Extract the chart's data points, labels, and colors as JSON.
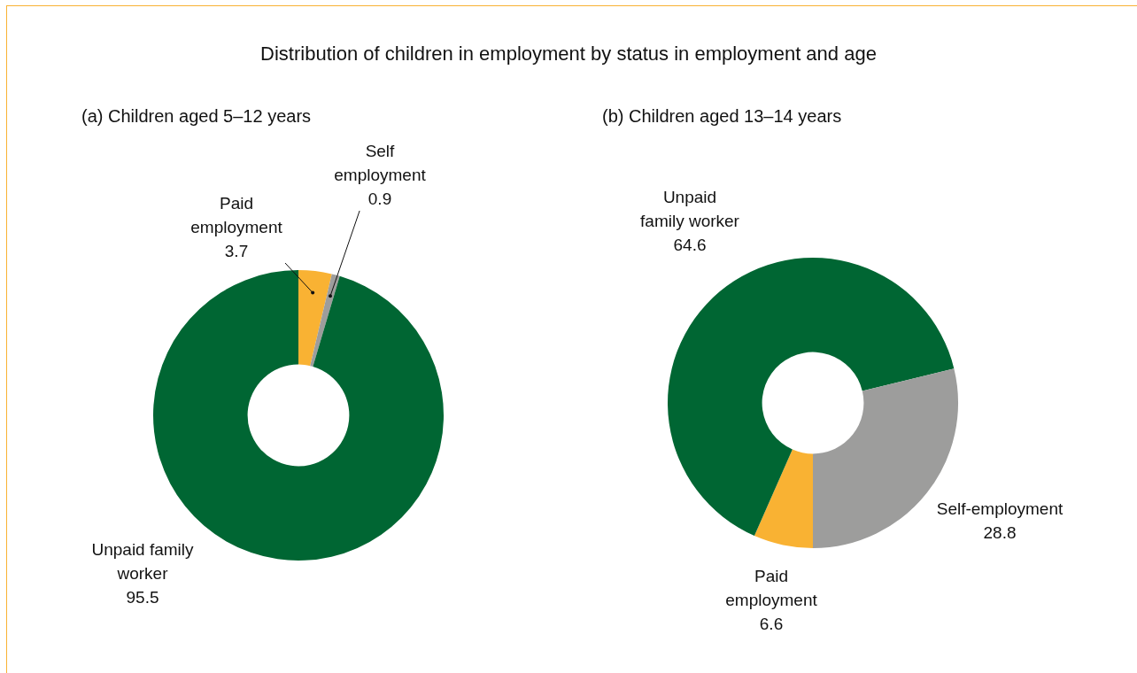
{
  "chart_data": [
    {
      "type": "donut",
      "title": "Distribution of children in employment by status in employment and age",
      "subtitle": "(a) Children aged 5–12 years",
      "categories": [
        "Paid employment",
        "Self employment",
        "Unpaid family worker"
      ],
      "values": [
        3.7,
        0.9,
        95.5
      ],
      "colors": [
        "#f9b233",
        "#9d9d9c",
        "#006633"
      ],
      "data_labels": true,
      "legend": false
    },
    {
      "type": "donut",
      "subtitle": "(b) Children aged 13–14 years",
      "categories": [
        "Paid employment",
        "Unpaid family worker",
        "Self-employment"
      ],
      "values": [
        6.6,
        64.6,
        28.8
      ],
      "colors": [
        "#f9b233",
        "#006633",
        "#9d9d9c"
      ],
      "data_labels": true,
      "legend": false
    }
  ]
}
